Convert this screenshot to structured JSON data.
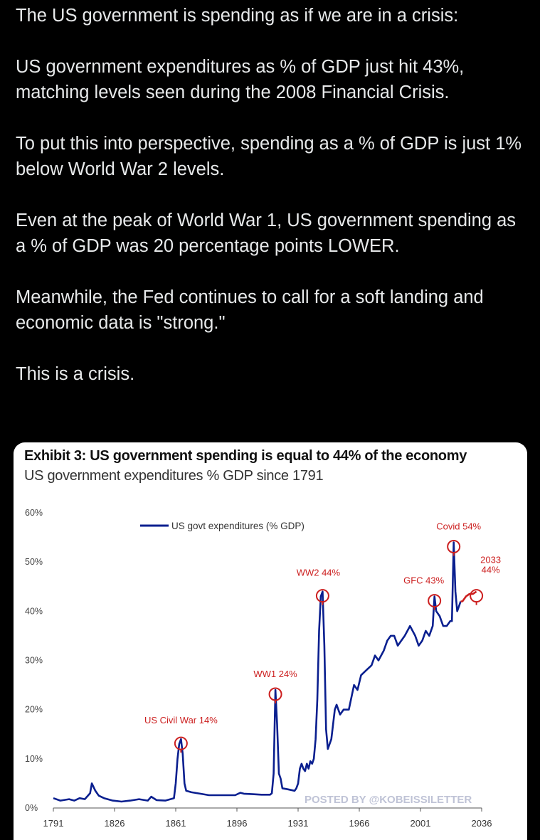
{
  "tweet": {
    "paragraphs": [
      "The US government is spending as if we are in a crisis:",
      "US government expenditures as % of GDP just hit 43%, matching levels seen during the 2008 Financial Crisis.",
      "To put this into perspective, spending as a % of GDP is just 1% below World War 2 levels.",
      "Even at the peak of World War 1, US government spending as a % of GDP was 20 percentage points LOWER.",
      "Meanwhile, the Fed continues to call for a soft landing and economic data is \"strong.\"",
      "This is a crisis."
    ]
  },
  "colors": {
    "series": "#0a1f8f",
    "annotation": "#cc1f1f",
    "watermark": "#bfc3d6"
  },
  "chart_data": {
    "type": "line",
    "title": "Exhibit 3: US government spending is equal to 44% of the economy",
    "subtitle": "US government expenditures % GDP since 1791",
    "legend": "US govt expenditures (% GDP)",
    "watermark": "POSTED BY @KOBEISSILETTER",
    "xlim": [
      1791,
      2036
    ],
    "ylim": [
      0,
      60
    ],
    "x_ticks": [
      "1791",
      "1826",
      "1861",
      "1896",
      "1931",
      "1966",
      "2001",
      "2036"
    ],
    "y_ticks": [
      "60%",
      "50%",
      "40%",
      "30%",
      "20%",
      "10%",
      "0%"
    ],
    "series": [
      {
        "name": "US govt expenditures (% GDP)",
        "x": [
          1791,
          1795,
          1800,
          1803,
          1806,
          1809,
          1812,
          1813,
          1815,
          1817,
          1820,
          1825,
          1830,
          1835,
          1840,
          1845,
          1847,
          1850,
          1855,
          1860,
          1861,
          1862,
          1863,
          1864,
          1865,
          1866,
          1867,
          1870,
          1875,
          1880,
          1885,
          1890,
          1895,
          1898,
          1900,
          1905,
          1910,
          1915,
          1916,
          1917,
          1918,
          1919,
          1920,
          1921,
          1922,
          1925,
          1929,
          1930,
          1931,
          1932,
          1933,
          1934,
          1935,
          1936,
          1937,
          1938,
          1939,
          1940,
          1941,
          1942,
          1943,
          1944,
          1945,
          1946,
          1947,
          1948,
          1950,
          1952,
          1953,
          1955,
          1957,
          1960,
          1963,
          1965,
          1967,
          1970,
          1973,
          1975,
          1977,
          1980,
          1982,
          1984,
          1986,
          1988,
          1990,
          1992,
          1995,
          1998,
          2000,
          2002,
          2004,
          2006,
          2008,
          2009,
          2010,
          2012,
          2014,
          2016,
          2018,
          2019,
          2020,
          2021,
          2022,
          2023,
          2024,
          2025,
          2027,
          2029,
          2031,
          2033
        ],
        "values": [
          2,
          1.5,
          1.8,
          1.5,
          2,
          1.8,
          3,
          5,
          3.5,
          2.5,
          2,
          1.5,
          1.3,
          1.5,
          1.8,
          1.5,
          2.3,
          1.6,
          1.5,
          2,
          5,
          10,
          13,
          14,
          11,
          5,
          3.5,
          3.2,
          2.9,
          2.6,
          2.6,
          2.6,
          2.6,
          3.1,
          2.9,
          2.8,
          2.7,
          2.7,
          3,
          7,
          24,
          17,
          7,
          6,
          4,
          3.8,
          3.5,
          4,
          5,
          8,
          9,
          8,
          7.5,
          9,
          8,
          9.5,
          9,
          10,
          14,
          22,
          36,
          43,
          44,
          33,
          16,
          12,
          14,
          20,
          21,
          19,
          20,
          20,
          25,
          24,
          27,
          28,
          29,
          31,
          30,
          32,
          34,
          35,
          35,
          33,
          34,
          35,
          37,
          35,
          33,
          34,
          36,
          35,
          37,
          43,
          40,
          39,
          37,
          37,
          38,
          38,
          54,
          44,
          40,
          41,
          42,
          42,
          43,
          43.5,
          43.5,
          44
        ]
      }
    ],
    "annotations": [
      {
        "label": "US Civil War 14%",
        "x": 1864,
        "y": 14
      },
      {
        "label": "WW1 24%",
        "x": 1918,
        "y": 24
      },
      {
        "label": "WW2 44%",
        "x": 1945,
        "y": 44
      },
      {
        "label": "GFC 43%",
        "x": 2009,
        "y": 43
      },
      {
        "label": "Covid 54%",
        "x": 2020,
        "y": 54
      },
      {
        "label_line1": "2033",
        "label_line2": "44%",
        "x": 2033,
        "y": 44
      }
    ],
    "forecast_start": 2024
  }
}
